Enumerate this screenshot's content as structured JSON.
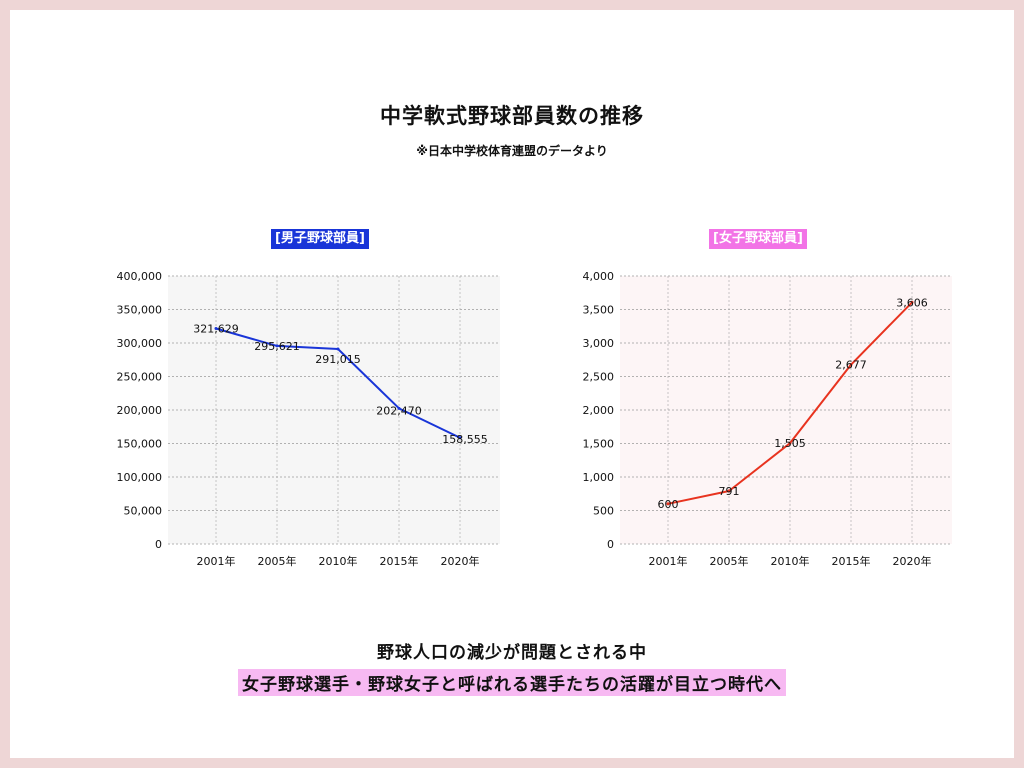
{
  "slide": {
    "title": "中学軟式野球部員数の推移",
    "subtitle": "※日本中学校体育連盟のデータより",
    "caption": "野球人口の減少が問題とされる中",
    "highlight": "女子野球選手・野球女子と呼ばれる選手たちの活躍が目立つ時代へ"
  },
  "chart_data": [
    {
      "type": "line",
      "title": "[男子野球部員]",
      "categories": [
        "2001年",
        "2005年",
        "2010年",
        "2015年",
        "2020年"
      ],
      "x": [
        2001,
        2005,
        2010,
        2015,
        2020
      ],
      "values": [
        321629,
        295621,
        291015,
        202470,
        158555
      ],
      "labels": [
        "321,629",
        "295,621",
        "291,015",
        "202,470",
        "158,555"
      ],
      "yticks": [
        "400,000",
        "350,000",
        "300,000",
        "250,000",
        "200,000",
        "150,000",
        "100,000",
        "50,000",
        "0"
      ],
      "ylim": [
        0,
        400000
      ],
      "grid": true,
      "line_color": "#1935d8",
      "plot_bg": "#f6f6f6",
      "title_bg": "#1935d8"
    },
    {
      "type": "line",
      "title": "[女子野球部員]",
      "categories": [
        "2001年",
        "2005年",
        "2010年",
        "2015年",
        "2020年"
      ],
      "x": [
        2001,
        2005,
        2010,
        2015,
        2020
      ],
      "values": [
        600,
        791,
        1505,
        2677,
        3606
      ],
      "labels": [
        "600",
        "791",
        "1,505",
        "2,677",
        "3,606"
      ],
      "yticks": [
        "4,000",
        "3,500",
        "3,000",
        "2,500",
        "2,000",
        "1,500",
        "1,000",
        "500",
        "0"
      ],
      "ylim": [
        0,
        4000
      ],
      "grid": true,
      "line_color": "#e8331f",
      "plot_bg": "#fdf5f6",
      "title_bg": "#f273e6"
    }
  ]
}
